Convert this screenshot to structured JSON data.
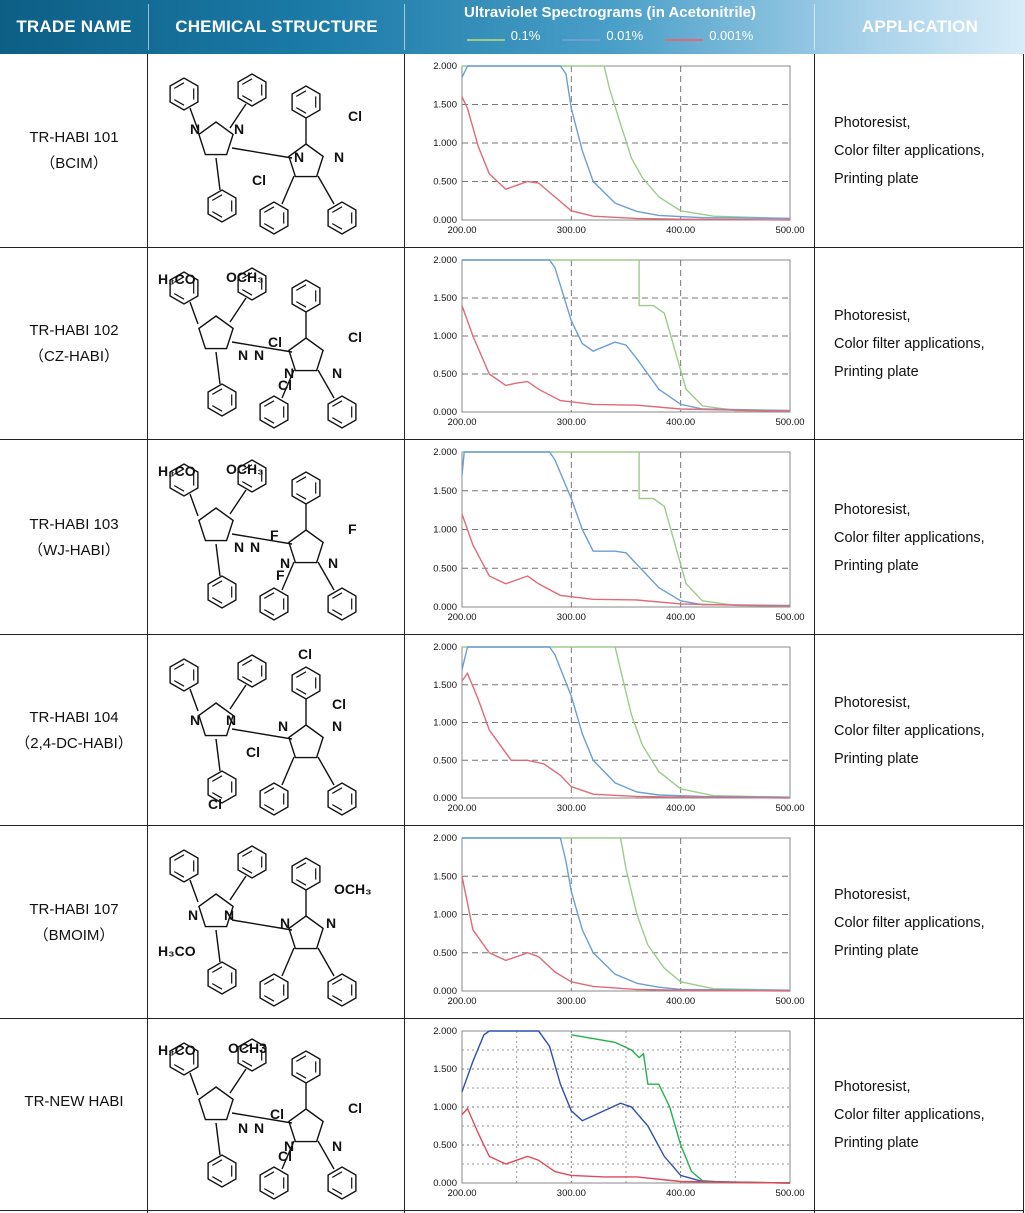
{
  "header": {
    "trade_name": "TRADE NAME",
    "chemical_structure": "CHEMICAL STRUCTURE",
    "uv_title": "Ultraviolet Spectrograms (in Acetonitrile)",
    "legend": [
      {
        "label": "0.1%",
        "color": "#9ccc8a"
      },
      {
        "label": "0.01%",
        "color": "#6b9fd4"
      },
      {
        "label": "0.001%",
        "color": "#e06a78"
      }
    ],
    "application": "APPLICATION"
  },
  "rows": [
    {
      "name": "TR-HABI 101",
      "sub": "（BCIM）",
      "labels": [
        "N",
        "N",
        "N",
        "N",
        "Cl",
        "Cl"
      ],
      "app": [
        "Photoresist,",
        "Color filter applications,",
        "Printing plate"
      ]
    },
    {
      "name": "TR-HABI 102",
      "sub": "（CZ-HABI）",
      "labels": [
        "H₃CO",
        "OCH₃",
        "N",
        "N",
        "N",
        "N",
        "Cl",
        "Cl",
        "Cl"
      ],
      "app": [
        "Photoresist,",
        "Color filter applications,",
        "Printing plate"
      ]
    },
    {
      "name": "TR-HABI 103",
      "sub": "（WJ-HABI）",
      "labels": [
        "H₃CO",
        "OCH₃",
        "N",
        "N",
        "N",
        "N",
        "F",
        "F",
        "F"
      ],
      "app": [
        "Photoresist,",
        "Color filter applications,",
        "Printing plate"
      ]
    },
    {
      "name": "TR-HABI 104",
      "sub": "（2,4-DC-HABI）",
      "labels": [
        "N",
        "N",
        "N",
        "N",
        "Cl",
        "Cl",
        "Cl",
        "Cl"
      ],
      "app": [
        "Photoresist,",
        "Color filter applications,",
        "Printing plate"
      ]
    },
    {
      "name": "TR-HABI 107",
      "sub": "（BMOIM）",
      "labels": [
        "N",
        "N",
        "N",
        "N",
        "OCH₃",
        "H₃CO"
      ],
      "app": [
        "Photoresist,",
        "Color filter applications,",
        "Printing plate"
      ]
    },
    {
      "name": "TR-NEW HABI",
      "sub": "",
      "labels": [
        "H₃CO",
        "OCH3",
        "N",
        "N",
        "N",
        "N",
        "Cl",
        "Cl",
        "Cl"
      ],
      "app": [
        "Photoresist,",
        "Color filter applications,",
        "Printing plate"
      ]
    }
  ],
  "chart_data": [
    {
      "type": "line",
      "xlim": [
        200,
        500
      ],
      "ylim": [
        0,
        2
      ],
      "xticks": [
        "200.00",
        "300.00",
        "400.00",
        "500.00"
      ],
      "yticks": [
        "0.000",
        "0.500",
        "1.000",
        "1.500",
        "2.000"
      ],
      "series": [
        {
          "name": "0.1%",
          "x": [
            200,
            330,
            335,
            345,
            355,
            365,
            380,
            400,
            430,
            500
          ],
          "y": [
            2.0,
            2.0,
            1.7,
            1.25,
            0.8,
            0.55,
            0.3,
            0.12,
            0.05,
            0.02
          ]
        },
        {
          "name": "0.01%",
          "x": [
            200,
            205,
            210,
            290,
            295,
            300,
            310,
            320,
            340,
            360,
            380,
            420,
            500
          ],
          "y": [
            1.85,
            2.0,
            2.0,
            2.0,
            1.9,
            1.45,
            0.9,
            0.5,
            0.22,
            0.11,
            0.06,
            0.03,
            0.02
          ]
        },
        {
          "name": "0.001%",
          "x": [
            200,
            205,
            215,
            225,
            240,
            250,
            260,
            270,
            285,
            300,
            320,
            360,
            400,
            500
          ],
          "y": [
            1.6,
            1.45,
            0.95,
            0.6,
            0.4,
            0.45,
            0.5,
            0.48,
            0.3,
            0.12,
            0.05,
            0.02,
            0.01,
            0.0
          ]
        }
      ]
    },
    {
      "type": "line",
      "xlim": [
        200,
        500
      ],
      "ylim": [
        0,
        2
      ],
      "xticks": [
        "200.00",
        "300.00",
        "400.00",
        "500.00"
      ],
      "yticks": [
        "0.000",
        "0.500",
        "1.000",
        "1.500",
        "2.000"
      ],
      "series": [
        {
          "name": "0.1%",
          "x": [
            200,
            362,
            362,
            375,
            385,
            395,
            405,
            420,
            450,
            500
          ],
          "y": [
            2.0,
            2.0,
            1.4,
            1.4,
            1.3,
            0.8,
            0.3,
            0.08,
            0.02,
            0.01
          ]
        },
        {
          "name": "0.01%",
          "x": [
            200,
            280,
            285,
            300,
            310,
            320,
            340,
            350,
            360,
            380,
            400,
            420,
            500
          ],
          "y": [
            2.0,
            2.0,
            1.9,
            1.2,
            0.9,
            0.8,
            0.92,
            0.88,
            0.7,
            0.3,
            0.1,
            0.04,
            0.02
          ]
        },
        {
          "name": "0.001%",
          "x": [
            200,
            210,
            225,
            240,
            250,
            260,
            270,
            290,
            320,
            360,
            400,
            500
          ],
          "y": [
            1.4,
            1.0,
            0.5,
            0.35,
            0.38,
            0.4,
            0.3,
            0.15,
            0.1,
            0.09,
            0.04,
            0.01
          ]
        }
      ]
    },
    {
      "type": "line",
      "xlim": [
        200,
        500
      ],
      "ylim": [
        0,
        2
      ],
      "xticks": [
        "200.00",
        "300.00",
        "400.00",
        "500.00"
      ],
      "yticks": [
        "0.000",
        "0.500",
        "1.000",
        "1.500",
        "2.000"
      ],
      "series": [
        {
          "name": "0.1%",
          "x": [
            200,
            362,
            362,
            375,
            385,
            395,
            405,
            420,
            450,
            500
          ],
          "y": [
            2.0,
            2.0,
            1.4,
            1.4,
            1.3,
            0.8,
            0.3,
            0.08,
            0.02,
            0.01
          ]
        },
        {
          "name": "0.01%",
          "x": [
            200,
            202,
            205,
            280,
            285,
            300,
            310,
            320,
            340,
            350,
            360,
            380,
            400,
            420,
            500
          ],
          "y": [
            1.7,
            2.0,
            2.0,
            2.0,
            1.9,
            1.4,
            1.0,
            0.72,
            0.72,
            0.7,
            0.55,
            0.25,
            0.08,
            0.03,
            0.02
          ]
        },
        {
          "name": "0.001%",
          "x": [
            200,
            210,
            225,
            240,
            250,
            260,
            270,
            290,
            320,
            360,
            400,
            500
          ],
          "y": [
            1.2,
            0.8,
            0.4,
            0.3,
            0.35,
            0.4,
            0.3,
            0.15,
            0.1,
            0.09,
            0.04,
            0.01
          ]
        }
      ]
    },
    {
      "type": "line",
      "xlim": [
        200,
        500
      ],
      "ylim": [
        0,
        2
      ],
      "xticks": [
        "200.00",
        "300.00",
        "400.00",
        "500.00"
      ],
      "yticks": [
        "0.000",
        "0.500",
        "1.000",
        "1.500",
        "2.000"
      ],
      "series": [
        {
          "name": "0.1%",
          "x": [
            200,
            340,
            345,
            355,
            365,
            380,
            400,
            430,
            500
          ],
          "y": [
            2.0,
            2.0,
            1.7,
            1.1,
            0.7,
            0.35,
            0.12,
            0.03,
            0.01
          ]
        },
        {
          "name": "0.01%",
          "x": [
            200,
            205,
            280,
            285,
            300,
            310,
            320,
            340,
            360,
            380,
            420,
            500
          ],
          "y": [
            1.7,
            2.0,
            2.0,
            1.9,
            1.35,
            0.85,
            0.5,
            0.2,
            0.08,
            0.04,
            0.02,
            0.01
          ]
        },
        {
          "name": "0.001%",
          "x": [
            200,
            205,
            215,
            225,
            235,
            245,
            260,
            275,
            290,
            300,
            320,
            360,
            400,
            500
          ],
          "y": [
            1.55,
            1.65,
            1.3,
            0.9,
            0.7,
            0.5,
            0.5,
            0.45,
            0.3,
            0.15,
            0.05,
            0.02,
            0.01,
            0.0
          ]
        }
      ]
    },
    {
      "type": "line",
      "xlim": [
        200,
        500
      ],
      "ylim": [
        0,
        2
      ],
      "xticks": [
        "200.00",
        "300.00",
        "400.00",
        "500.00"
      ],
      "yticks": [
        "0.000",
        "0.500",
        "1.000",
        "1.500",
        "2.000"
      ],
      "series": [
        {
          "name": "0.1%",
          "x": [
            200,
            345,
            350,
            360,
            370,
            385,
            400,
            430,
            500
          ],
          "y": [
            2.0,
            2.0,
            1.6,
            1.0,
            0.6,
            0.3,
            0.12,
            0.03,
            0.01
          ]
        },
        {
          "name": "0.01%",
          "x": [
            200,
            290,
            295,
            300,
            310,
            320,
            340,
            360,
            380,
            400,
            500
          ],
          "y": [
            2.0,
            2.0,
            1.7,
            1.3,
            0.8,
            0.5,
            0.22,
            0.1,
            0.05,
            0.02,
            0.01
          ]
        },
        {
          "name": "0.001%",
          "x": [
            200,
            210,
            225,
            240,
            250,
            260,
            270,
            285,
            300,
            320,
            360,
            400,
            500
          ],
          "y": [
            1.5,
            0.8,
            0.5,
            0.4,
            0.45,
            0.5,
            0.45,
            0.25,
            0.12,
            0.06,
            0.02,
            0.01,
            0.0
          ]
        }
      ]
    },
    {
      "type": "line",
      "xlim": [
        200,
        500
      ],
      "ylim": [
        0,
        2
      ],
      "xticks": [
        "200.00",
        "300.00",
        "400.00",
        "500.00"
      ],
      "yticks": [
        "0.000",
        "0.500",
        "1.000",
        "1.500",
        "2.000"
      ],
      "series": [
        {
          "name": "0.1%",
          "x": [
            300,
            320,
            340,
            355,
            362,
            366,
            370,
            380,
            390,
            400,
            410,
            420,
            440,
            500
          ],
          "y": [
            1.95,
            1.9,
            1.85,
            1.75,
            1.65,
            1.7,
            1.3,
            1.3,
            1.0,
            0.5,
            0.15,
            0.03,
            0.01,
            0.0
          ]
        },
        {
          "name": "0.01%",
          "x": [
            200,
            210,
            220,
            225,
            270,
            280,
            290,
            300,
            310,
            330,
            345,
            355,
            370,
            385,
            400,
            420,
            500
          ],
          "y": [
            1.2,
            1.6,
            1.95,
            2.0,
            2.0,
            1.8,
            1.3,
            0.95,
            0.82,
            0.95,
            1.05,
            1.0,
            0.75,
            0.35,
            0.1,
            0.02,
            0.0
          ]
        },
        {
          "name": "0.001%",
          "x": [
            200,
            205,
            215,
            225,
            240,
            250,
            260,
            270,
            285,
            300,
            330,
            360,
            400,
            500
          ],
          "y": [
            0.9,
            0.98,
            0.65,
            0.35,
            0.25,
            0.3,
            0.35,
            0.3,
            0.15,
            0.1,
            0.08,
            0.08,
            0.02,
            0.0
          ]
        }
      ]
    }
  ]
}
